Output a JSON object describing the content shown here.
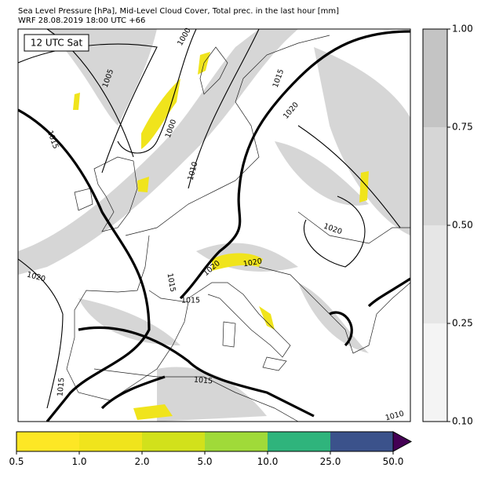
{
  "header": {
    "line1": "Sea Level Pressure [hPa], Mid-Level Cloud Cover, Total prec. in the last hour [mm]",
    "line2": "WRF 28.08.2019 18:00 UTC +66"
  },
  "map": {
    "time_label": "12 UTC Sat",
    "contour_labels": [
      "1000",
      "1005",
      "1015",
      "1020",
      "1015",
      "1000",
      "1010",
      "1020",
      "1020",
      "1020",
      "1015",
      "1015",
      "1020",
      "1015",
      "1015",
      "1010"
    ]
  },
  "cloud_colorbar": {
    "colors": [
      "#f4f4f4",
      "#e6e6e6",
      "#d6d6d6",
      "#c4c4c4"
    ],
    "ticks": [
      {
        "value": 0.1,
        "label": "0.10"
      },
      {
        "value": 0.25,
        "label": "0.25"
      },
      {
        "value": 0.5,
        "label": "0.50"
      },
      {
        "value": 0.75,
        "label": "0.75"
      },
      {
        "value": 1,
        "label": "1.00"
      }
    ]
  },
  "precip_colorbar": {
    "colors": [
      "#fde725",
      "#f0e41c",
      "#d2e11b",
      "#a0da39",
      "#2fb47c",
      "#3b528b"
    ],
    "over_color": "#440154",
    "ticks": [
      {
        "value": 0.5,
        "label": "0.5"
      },
      {
        "value": 1,
        "label": "1.0"
      },
      {
        "value": 2,
        "label": "2.0"
      },
      {
        "value": 5,
        "label": "5.0"
      },
      {
        "value": 10,
        "label": "10.0"
      },
      {
        "value": 25,
        "label": "25.0"
      },
      {
        "value": 50,
        "label": "50.0"
      }
    ]
  }
}
